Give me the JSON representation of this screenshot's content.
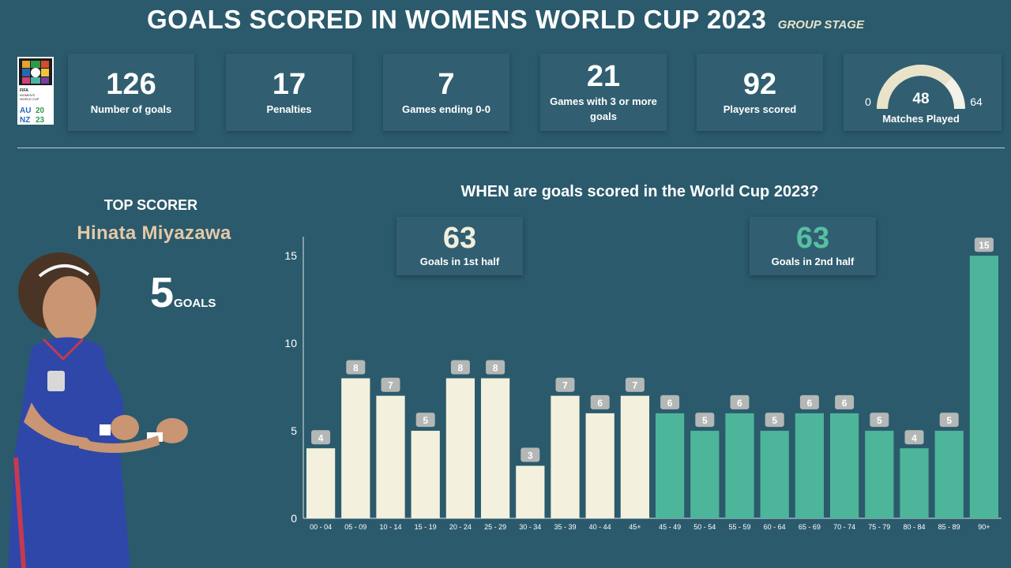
{
  "header": {
    "title": "GOALS SCORED IN WOMENS WORLD CUP 2023",
    "subtitle": "GROUP STAGE"
  },
  "logo": {
    "icon": "fifa-womens-world-cup-2023-logo-icon",
    "line1": "FIFA",
    "line2": "WOMEN'S",
    "line3": "WORLD CUP",
    "line4": "AU",
    "line5": "NZ",
    "line6": "20",
    "line7": "23"
  },
  "kpis": [
    {
      "value": "126",
      "label": "Number of goals"
    },
    {
      "value": "17",
      "label": "Penalties"
    },
    {
      "value": "7",
      "label": "Games ending 0-0"
    },
    {
      "value": "21",
      "label": "Games with 3 or more goals"
    },
    {
      "value": "92",
      "label": "Players scored"
    }
  ],
  "gauge": {
    "value": 48,
    "min": 0,
    "max": 64,
    "label": "Matches Played",
    "value_text": "48",
    "min_text": "0",
    "max_text": "64",
    "fill_color": "#e9e4c9",
    "track_color": "#f3f1e8"
  },
  "top_scorer": {
    "heading": "TOP SCORER",
    "name": "Hinata Miyazawa",
    "goals": "5",
    "goals_unit": "GOALS"
  },
  "halves": {
    "first": {
      "value": "63",
      "label": "Goals in 1st half",
      "color": "#f1efdc"
    },
    "second": {
      "value": "63",
      "label": "Goals in 2nd half",
      "color": "#55c0a2"
    }
  },
  "chart_data": {
    "type": "bar",
    "title": "WHEN are goals scored in the World Cup 2023?",
    "categories": [
      "00 - 04",
      "05 - 09",
      "10 - 14",
      "15 - 19",
      "20 - 24",
      "25 - 29",
      "30 - 34",
      "35 - 39",
      "40 - 44",
      "45+",
      "45 - 49",
      "50 - 54",
      "55 - 59",
      "60 - 64",
      "65 - 69",
      "70 - 74",
      "75 - 79",
      "80 - 84",
      "85 - 89",
      "90+"
    ],
    "values": [
      4,
      8,
      7,
      5,
      8,
      8,
      3,
      7,
      6,
      7,
      6,
      5,
      6,
      5,
      6,
      6,
      5,
      4,
      5,
      15
    ],
    "ylim": [
      0,
      16
    ],
    "yticks": [
      0,
      5,
      10,
      15
    ],
    "first_half_count": 10,
    "colors": {
      "first_half": "#f3f1dd",
      "second_half": "#4db59a",
      "label_bg": "#b3b7b5"
    },
    "xlabel": "",
    "ylabel": "",
    "grid": false
  }
}
